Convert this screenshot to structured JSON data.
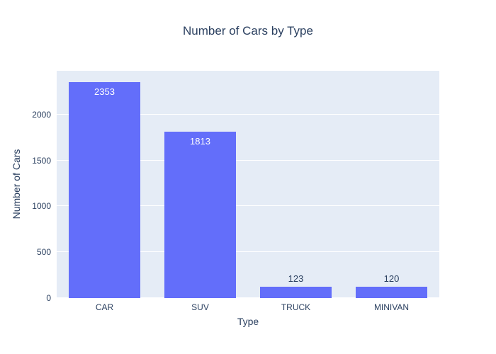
{
  "chart_data": {
    "type": "bar",
    "title": "Number of Cars by Type",
    "xlabel": "Type",
    "ylabel": "Number of Cars",
    "categories": [
      "CAR",
      "SUV",
      "TRUCK",
      "MINIVAN"
    ],
    "values": [
      2353,
      1813,
      123,
      120
    ],
    "bar_labels": [
      "2353",
      "1813",
      "123",
      "120"
    ],
    "label_positions": [
      "inside",
      "inside",
      "outside",
      "outside"
    ],
    "ylim": [
      0,
      2478
    ],
    "yticks": [
      0,
      500,
      1000,
      1500,
      2000
    ],
    "grid": true,
    "legend": "none",
    "colors": {
      "bar": "#636efa",
      "plot_bg": "#e5ecf6",
      "paper_bg": "#ffffff",
      "grid": "#ffffff",
      "text": "#2a3f5f",
      "inside_label": "#ffffff",
      "outside_label": "#2a3f5f"
    }
  }
}
